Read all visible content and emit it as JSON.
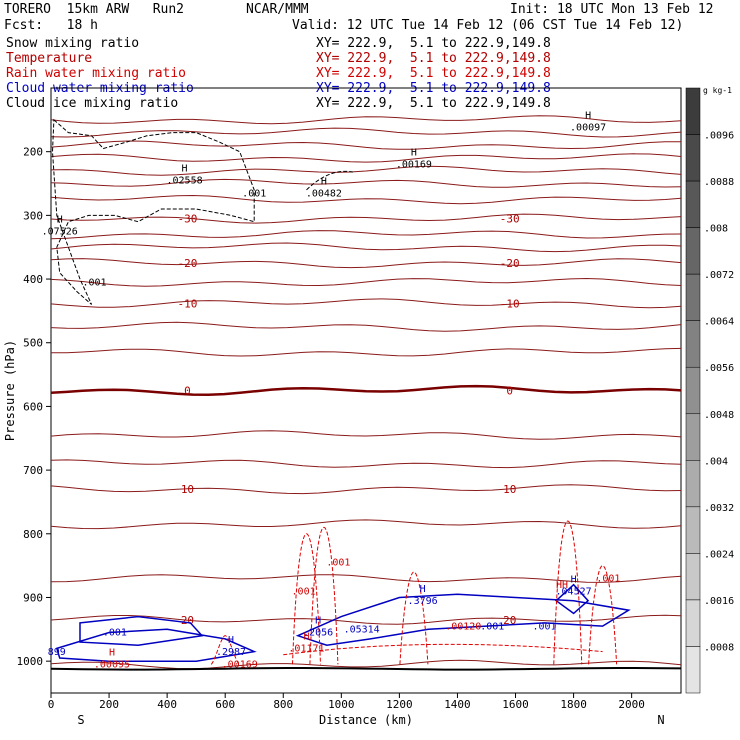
{
  "header": {
    "model": "TORERO  15km ARW   Run2",
    "org": "NCAR/MMM",
    "init": "Init: 18 UTC Mon 13 Feb 12",
    "fcst": "Fcst:   18 h",
    "valid": "Valid: 12 UTC Tue 14 Feb 12 (06 CST Tue 14 Feb 12)"
  },
  "legend": [
    {
      "name": "Snow mixing ratio",
      "color": "#000000",
      "xy": "XY= 222.9,  5.1 to 222.9,149.8"
    },
    {
      "name": "Temperature",
      "color": "#b00000",
      "xy": "XY= 222.9,  5.1 to 222.9,149.8"
    },
    {
      "name": "Rain water mixing ratio",
      "color": "#d00000",
      "xy": "XY= 222.9,  5.1 to 222.9,149.8"
    },
    {
      "name": "Cloud water mixing ratio",
      "color": "#0000c0",
      "xy": "XY= 222.9,  5.1 to 222.9,149.8"
    },
    {
      "name": "Cloud ice mixing ratio",
      "color": "#000000",
      "xy": "XY= 222.9,  5.1 to 222.9,149.8"
    }
  ],
  "chart_data": {
    "type": "line",
    "xlabel": "Distance (km)",
    "ylabel": "Pressure (hPa)",
    "xlim": [
      0,
      2170
    ],
    "ylim": [
      1050,
      100
    ],
    "x_ticks": [
      0,
      200,
      400,
      600,
      800,
      1000,
      1200,
      1400,
      1600,
      1800,
      2000
    ],
    "y_ticks": [
      200,
      300,
      400,
      500,
      600,
      700,
      800,
      900,
      1000
    ],
    "x_end_labels": {
      "left": "S",
      "right": "N"
    },
    "colorbar": {
      "unit": "g kg-1",
      "ticks": [
        ".0096",
        ".0088",
        ".008",
        ".0072",
        ".0064",
        ".0056",
        ".0048",
        ".004",
        ".0032",
        ".0024",
        ".0016",
        ".0008"
      ],
      "colors": [
        "#3c3c3c",
        "#4a4a4a",
        "#585858",
        "#666666",
        "#747474",
        "#828282",
        "#909090",
        "#9e9e9e",
        "#acacac",
        "#bababa",
        "#c8c8c8",
        "#d6d6d6",
        "#e4e4e4"
      ]
    },
    "temperature_isotherms": [
      {
        "p": 150,
        "label": ""
      },
      {
        "p": 170,
        "label": ""
      },
      {
        "p": 190,
        "label": ""
      },
      {
        "p": 210,
        "label": ""
      },
      {
        "p": 230,
        "label": ""
      },
      {
        "p": 250,
        "label": ""
      },
      {
        "p": 275,
        "label": ""
      },
      {
        "p": 305,
        "label": "-30"
      },
      {
        "p": 330,
        "label": ""
      },
      {
        "p": 350,
        "label": ""
      },
      {
        "p": 375,
        "label": "-20"
      },
      {
        "p": 405,
        "label": ""
      },
      {
        "p": 438,
        "label": "-10"
      },
      {
        "p": 475,
        "label": ""
      },
      {
        "p": 515,
        "label": ""
      },
      {
        "p": 575,
        "label": "0"
      },
      {
        "p": 645,
        "label": ""
      },
      {
        "p": 690,
        "label": ""
      },
      {
        "p": 730,
        "label": "10"
      },
      {
        "p": 785,
        "label": ""
      },
      {
        "p": 870,
        "label": ""
      },
      {
        "p": 935,
        "label": "20"
      },
      {
        "p": 1005,
        "label": ""
      }
    ],
    "snow_labels": [
      {
        "x": 30,
        "p": 330,
        "text": ".07526",
        "h": true
      },
      {
        "x": 150,
        "p": 410,
        "text": ".001",
        "h": false
      },
      {
        "x": 460,
        "p": 250,
        "text": ".02558",
        "h": true
      },
      {
        "x": 700,
        "p": 270,
        "text": ".001",
        "h": false
      },
      {
        "x": 940,
        "p": 270,
        "text": ".00482",
        "h": true
      },
      {
        "x": 1250,
        "p": 225,
        "text": ".00169",
        "h": true
      },
      {
        "x": 1850,
        "p": 167,
        "text": ".00097",
        "h": true
      }
    ],
    "cloud_water_labels": [
      {
        "x": 20,
        "p": 990,
        "text": "899",
        "h": false
      },
      {
        "x": 220,
        "p": 960,
        "text": ".001",
        "h": false
      },
      {
        "x": 620,
        "p": 990,
        "text": ".2987",
        "h": true
      },
      {
        "x": 920,
        "p": 960,
        "text": ".2056",
        "h": true
      },
      {
        "x": 1070,
        "p": 955,
        "text": ".05314",
        "h": false
      },
      {
        "x": 1280,
        "p": 910,
        "text": ".3796",
        "h": true
      },
      {
        "x": 1520,
        "p": 950,
        "text": ".001",
        "h": false
      },
      {
        "x": 1700,
        "p": 950,
        "text": ".001",
        "h": false
      },
      {
        "x": 1800,
        "p": 895,
        "text": ".04527",
        "h": true
      }
    ],
    "rain_labels": [
      {
        "x": 210,
        "p": 1010,
        "text": ".00095",
        "h": true
      },
      {
        "x": 650,
        "p": 1010,
        "text": ".00169",
        "h": false
      },
      {
        "x": 880,
        "p": 985,
        "text": ".01171",
        "h": true
      },
      {
        "x": 870,
        "p": 895,
        "text": ".001",
        "h": false
      },
      {
        "x": 990,
        "p": 850,
        "text": ".001",
        "h": false
      },
      {
        "x": 1420,
        "p": 950,
        "text": ".00120",
        "h": false
      },
      {
        "x": 1920,
        "p": 875,
        "text": ".001",
        "h": false
      },
      {
        "x": 1760,
        "p": 885,
        "text": "HH",
        "h": false
      }
    ]
  }
}
